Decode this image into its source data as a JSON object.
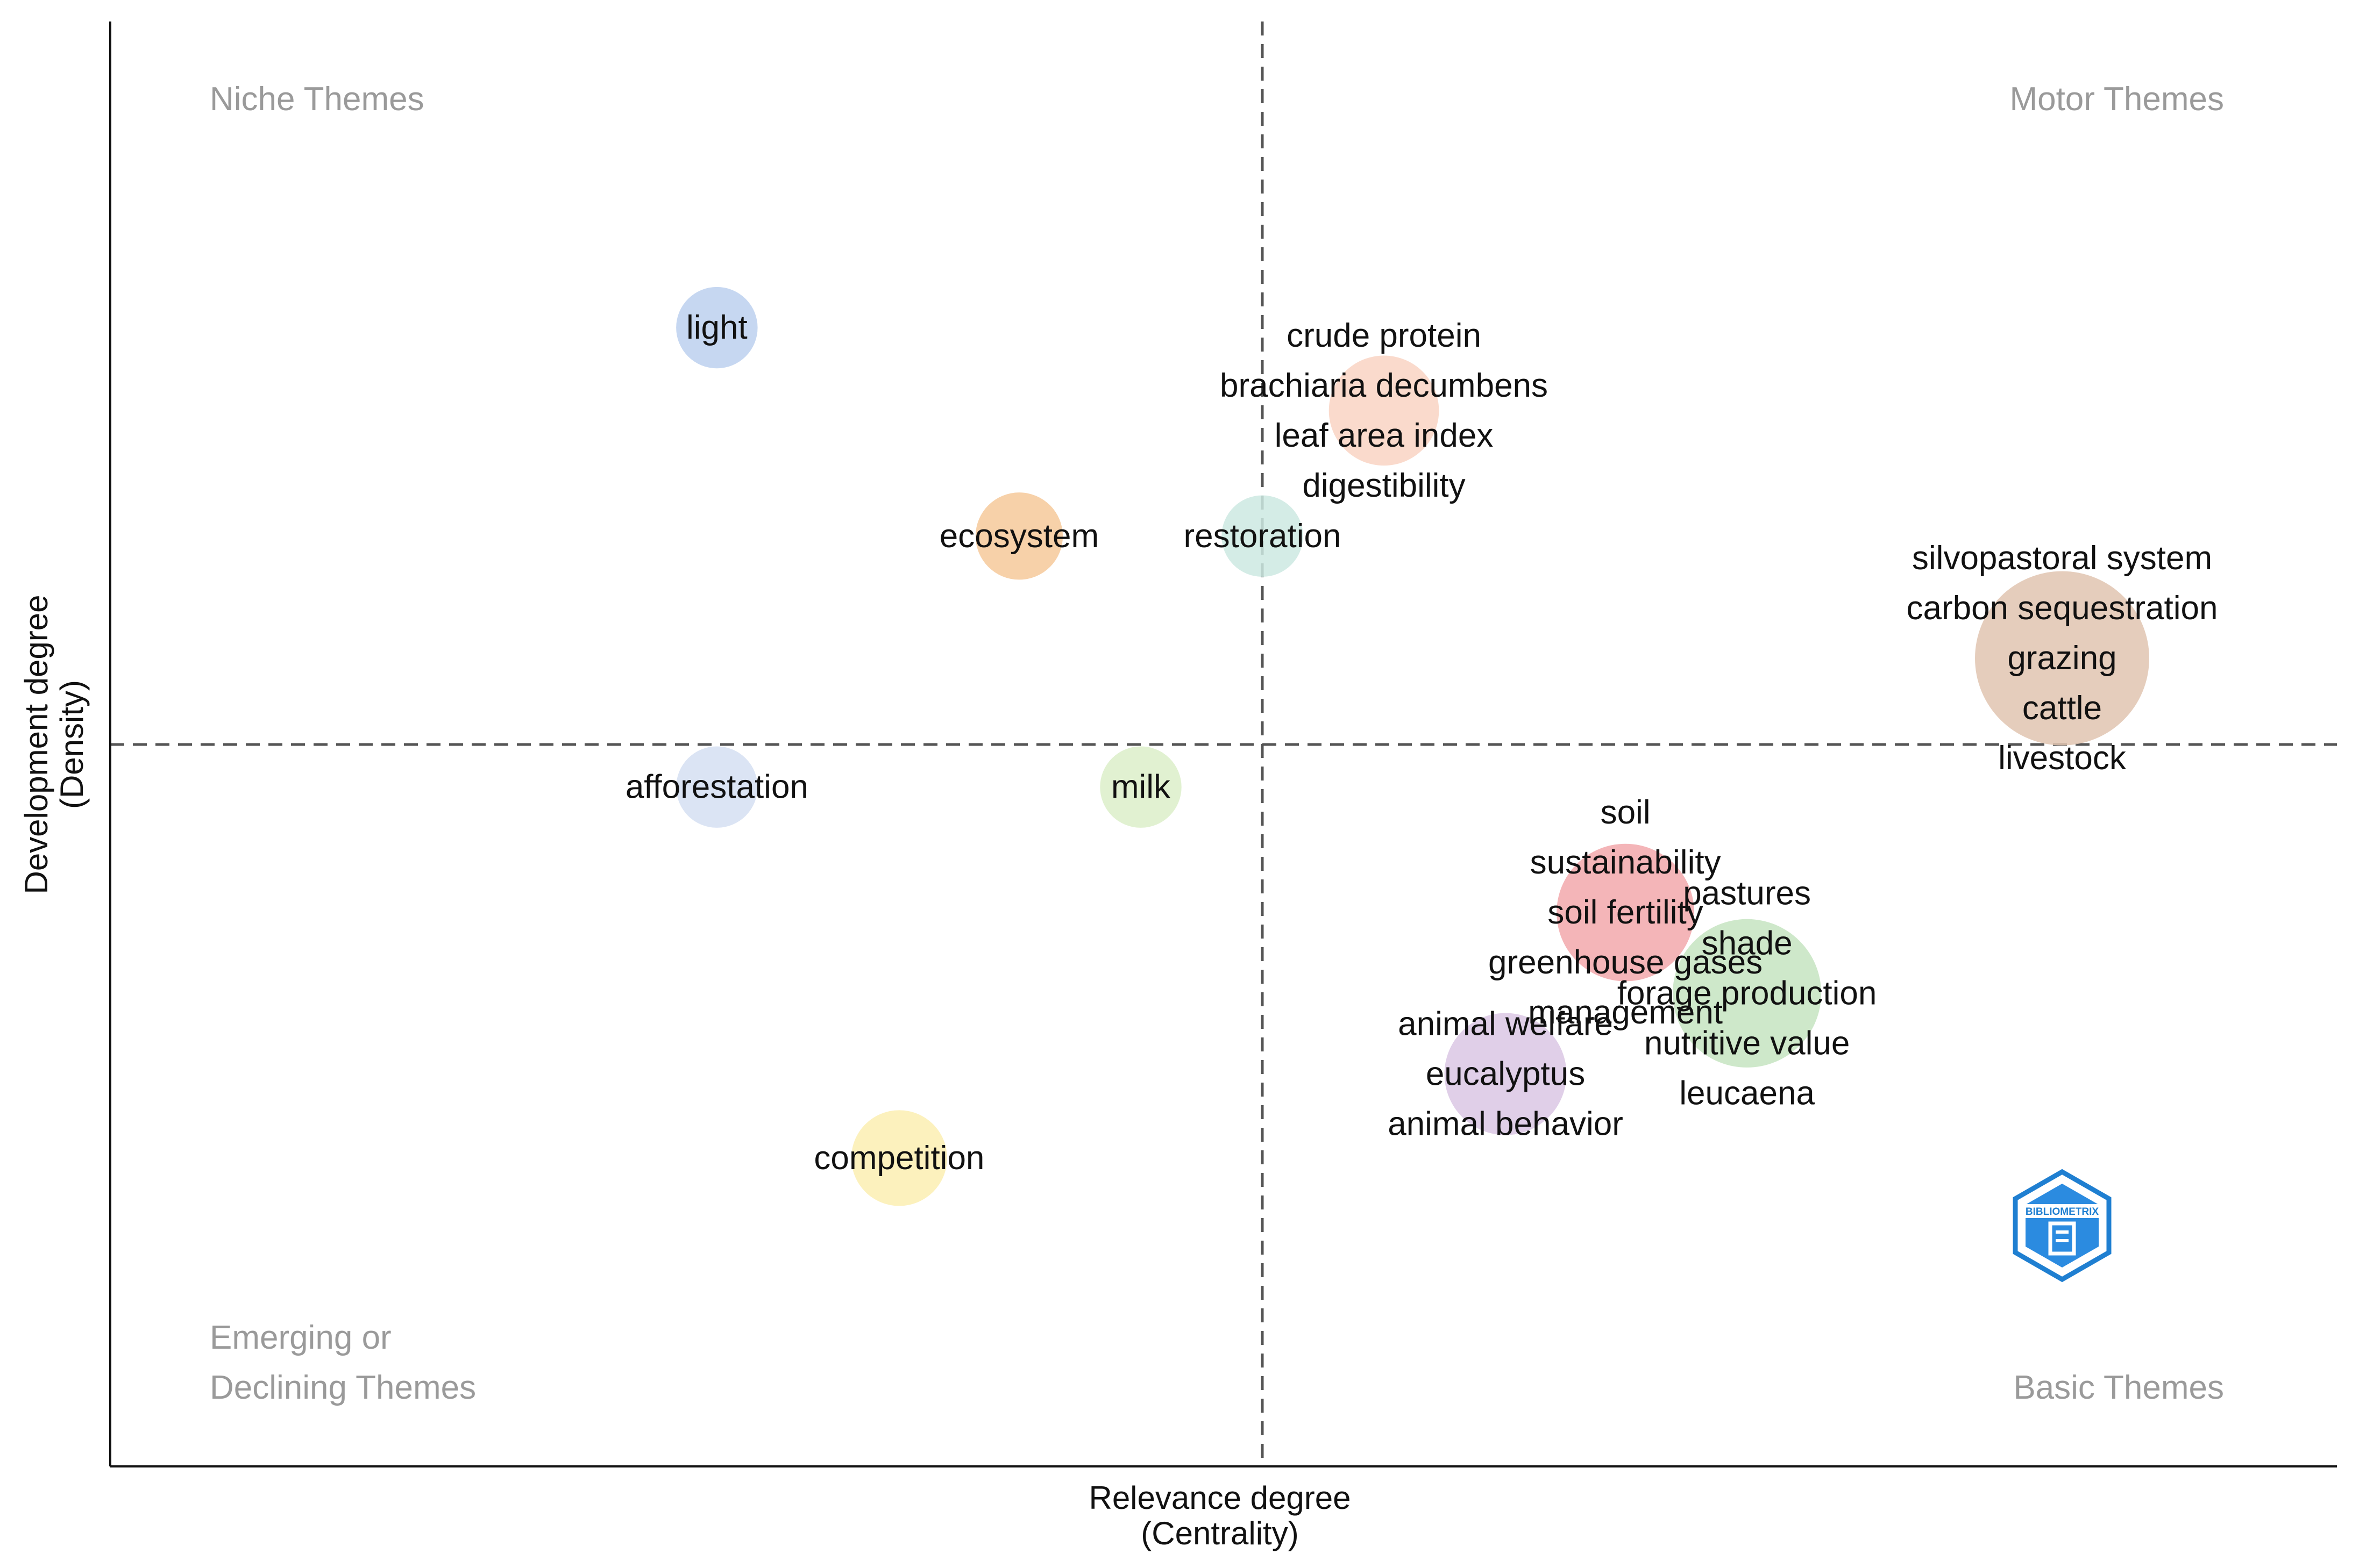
{
  "chart_data": {
    "type": "scatter",
    "title": "",
    "xlabel": [
      "Relevance degree",
      "(Centrality)"
    ],
    "ylabel": [
      "Development degree",
      "(Density)"
    ],
    "xlim": [
      0.0,
      1.0
    ],
    "ylim": [
      0.0,
      1.0
    ],
    "x_reference": 0.5,
    "y_reference": 0.5,
    "grid": false,
    "quadrant_labels": {
      "top_left": [
        "Niche Themes"
      ],
      "top_right": [
        "Motor Themes"
      ],
      "bottom_left": [
        "Emerging or",
        "Declining Themes"
      ],
      "bottom_right": [
        "Basic Themes"
      ]
    },
    "logo_text": "BIBLIOMETRIX",
    "clusters": [
      {
        "name": "light",
        "x": 0.159,
        "y": 0.882,
        "size": 0.12,
        "color": "#bcd0ee",
        "labels": [
          "light"
        ]
      },
      {
        "name": "crude protein",
        "x": 0.576,
        "y": 0.806,
        "size": 0.3,
        "color": "#f9d3c3",
        "labels": [
          "crude protein",
          "brachiaria decumbens",
          "leaf area index",
          "digestibility"
        ]
      },
      {
        "name": "ecosystem",
        "x": 0.348,
        "y": 0.691,
        "size": 0.15,
        "color": "#f6c99a",
        "labels": [
          "ecosystem"
        ]
      },
      {
        "name": "restoration",
        "x": 0.5,
        "y": 0.691,
        "size": 0.12,
        "color": "#cce9e2",
        "labels": [
          "restoration"
        ]
      },
      {
        "name": "silvopastoral system",
        "x": 1.0,
        "y": 0.579,
        "size": 1.0,
        "color": "#e1c4b0",
        "labels": [
          "silvopastoral system",
          "carbon sequestration",
          "grazing",
          "cattle",
          "livestock"
        ]
      },
      {
        "name": "afforestation",
        "x": 0.159,
        "y": 0.461,
        "size": 0.12,
        "color": "#d5dff2",
        "labels": [
          "afforestation"
        ]
      },
      {
        "name": "milk",
        "x": 0.424,
        "y": 0.461,
        "size": 0.12,
        "color": "#dcefc9",
        "labels": [
          "milk"
        ]
      },
      {
        "name": "soil",
        "x": 0.727,
        "y": 0.346,
        "size": 0.55,
        "color": "#f2a8ac",
        "labels": [
          "soil",
          "sustainability",
          "soil fertility",
          "greenhouse gases",
          "management"
        ]
      },
      {
        "name": "pastures",
        "x": 0.803,
        "y": 0.272,
        "size": 0.67,
        "color": "#c6e4c1",
        "labels": [
          "pastures",
          "shade",
          "forage production",
          "nutritive value",
          "leucaena"
        ]
      },
      {
        "name": "animal welfare",
        "x": 0.652,
        "y": 0.198,
        "size": 0.4,
        "color": "#dac7e4",
        "labels": [
          "animal welfare",
          "eucalyptus",
          "animal behavior"
        ]
      },
      {
        "name": "competition",
        "x": 0.273,
        "y": 0.121,
        "size": 0.2,
        "color": "#fbefb2",
        "labels": [
          "competition"
        ]
      }
    ]
  }
}
